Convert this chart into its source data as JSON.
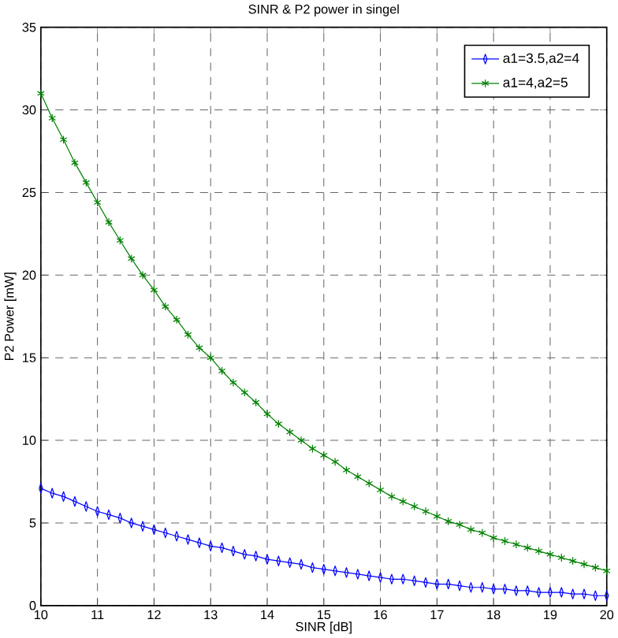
{
  "chart_data": {
    "type": "line",
    "title": "SINR & P2 power in singel",
    "xlabel": "SINR [dB]",
    "ylabel": "P2  Power [mW]",
    "x": [
      10,
      10.2,
      10.4,
      10.6,
      10.8,
      11,
      11.2,
      11.4,
      11.6,
      11.8,
      12,
      12.2,
      12.4,
      12.6,
      12.8,
      13,
      13.2,
      13.4,
      13.6,
      13.8,
      14,
      14.2,
      14.4,
      14.6,
      14.8,
      15,
      15.2,
      15.4,
      15.6,
      15.8,
      16,
      16.2,
      16.4,
      16.6,
      16.8,
      17,
      17.2,
      17.4,
      17.6,
      17.8,
      18,
      18.2,
      18.4,
      18.6,
      18.8,
      19,
      19.2,
      19.4,
      19.6,
      19.8,
      20
    ],
    "series": [
      {
        "name": "a1=3.5,a2=4",
        "color": "#0000ff",
        "marker": "diamond",
        "values": [
          7.1,
          6.8,
          6.6,
          6.3,
          6.0,
          5.7,
          5.5,
          5.3,
          5.0,
          4.8,
          4.6,
          4.4,
          4.2,
          4.0,
          3.8,
          3.6,
          3.5,
          3.3,
          3.1,
          3.0,
          2.8,
          2.7,
          2.6,
          2.5,
          2.3,
          2.2,
          2.1,
          2.0,
          1.9,
          1.8,
          1.7,
          1.6,
          1.6,
          1.5,
          1.4,
          1.3,
          1.3,
          1.2,
          1.1,
          1.1,
          1.0,
          1.0,
          0.9,
          0.9,
          0.8,
          0.8,
          0.8,
          0.7,
          0.7,
          0.6,
          0.6
        ]
      },
      {
        "name": "a1=4,a2=5",
        "color": "#008000",
        "marker": "cross",
        "values": [
          31,
          29.5,
          28.2,
          26.8,
          25.6,
          24.4,
          23.2,
          22.1,
          21,
          20,
          19.1,
          18.1,
          17.3,
          16.4,
          15.6,
          15,
          14.2,
          13.5,
          12.9,
          12.3,
          11.6,
          11.0,
          10.5,
          10.0,
          9.5,
          9.1,
          8.7,
          8.2,
          7.8,
          7.4,
          7.0,
          6.6,
          6.3,
          6.0,
          5.7,
          5.4,
          5.1,
          4.9,
          4.6,
          4.4,
          4.1,
          3.9,
          3.7,
          3.5,
          3.3,
          3.1,
          2.9,
          2.7,
          2.5,
          2.3,
          2.1
        ]
      }
    ],
    "xlim": [
      10,
      20
    ],
    "ylim": [
      0,
      35
    ],
    "xticks": [
      10,
      11,
      12,
      13,
      14,
      15,
      16,
      17,
      18,
      19,
      20
    ],
    "yticks": [
      0,
      5,
      10,
      15,
      20,
      25,
      30,
      35
    ],
    "grid": true,
    "legend": "top right",
    "line_style": "solid"
  }
}
